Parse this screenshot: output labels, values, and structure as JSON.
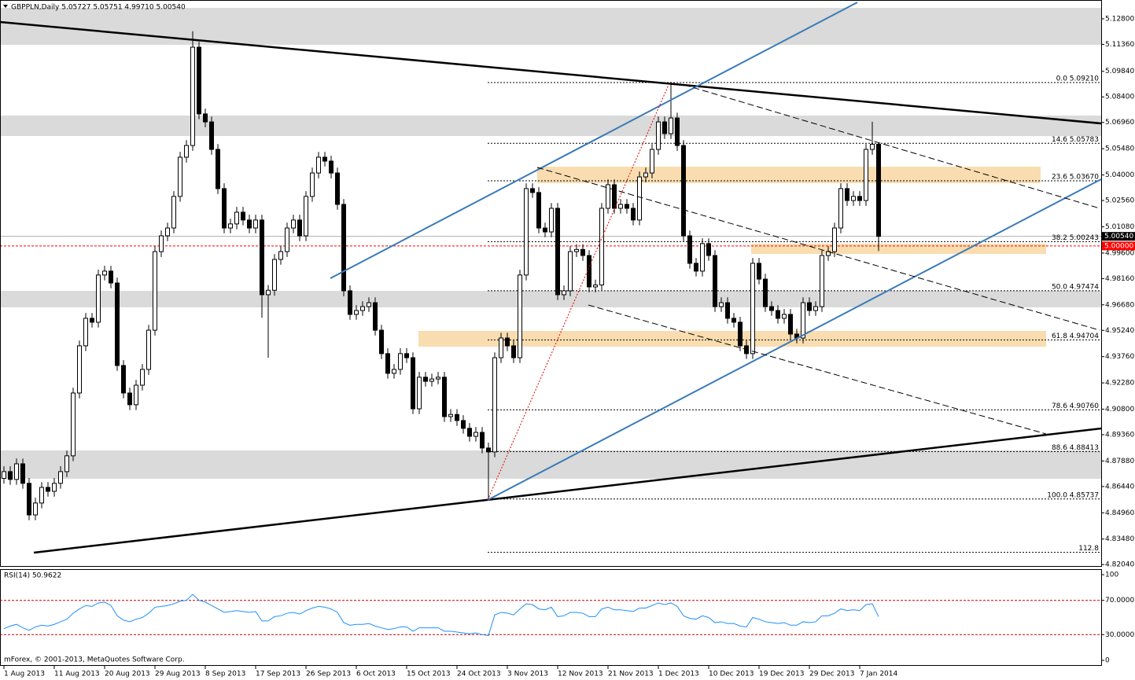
{
  "footer": "mForex, © 2001-2013, MetaQuotes Software Corp.",
  "chart_data": [
    {
      "type": "candlestick",
      "title": "GBPPLN,Daily  5.05727 5.05751 4.99710 5.00540",
      "categories": [
        "1 Aug 2013",
        null,
        null,
        null,
        null,
        null,
        null,
        null,
        "11 Aug 2013",
        null,
        null,
        null,
        null,
        null,
        null,
        null,
        "20 Aug 2013",
        null,
        null,
        null,
        null,
        null,
        null,
        null,
        "29 Aug 2013",
        null,
        null,
        null,
        null,
        null,
        null,
        null,
        "8 Sep 2013",
        null,
        null,
        null,
        null,
        null,
        null,
        null,
        "17 Sep 2013",
        null,
        null,
        null,
        null,
        null,
        null,
        null,
        "26 Sep 2013",
        null,
        null,
        null,
        null,
        null,
        null,
        null,
        "6 Oct 2013",
        null,
        null,
        null,
        null,
        null,
        null,
        null,
        "15 Oct 2013",
        null,
        null,
        null,
        null,
        null,
        null,
        null,
        "24 Oct 2013",
        null,
        null,
        null,
        null,
        null,
        null,
        null,
        "3 Nov 2013",
        null,
        null,
        null,
        null,
        null,
        null,
        null,
        "12 Nov 2013",
        null,
        null,
        null,
        null,
        null,
        null,
        null,
        "21 Nov 2013",
        null,
        null,
        null,
        null,
        null,
        null,
        null,
        "1 Dec 2013",
        null,
        null,
        null,
        null,
        null,
        null,
        null,
        "10 Dec 2013",
        null,
        null,
        null,
        null,
        null,
        null,
        null,
        "19 Dec 2013",
        null,
        null,
        null,
        null,
        null,
        null,
        null,
        "29 Dec 2013",
        null,
        null,
        null,
        null,
        null,
        null,
        null,
        "7 Jan 2014",
        null,
        null,
        null
      ],
      "open": [
        4.869,
        4.8728,
        4.8684,
        4.8772,
        4.8662,
        4.8484,
        4.8551,
        4.8639,
        4.8617,
        4.8662,
        4.8728,
        4.8817,
        4.9171,
        4.9437,
        4.9592,
        4.957,
        4.9836,
        4.9858,
        4.9791,
        4.9326,
        4.9171,
        4.9105,
        4.9215,
        4.9304,
        4.9525,
        4.9968,
        5.0057,
        5.0101,
        5.0279,
        5.05,
        5.0566,
        5.112,
        5.0744,
        5.0699,
        5.0544,
        5.0323,
        5.0101,
        5.0124,
        5.019,
        5.0146,
        5.0101,
        5.0146,
        4.9725,
        4.975,
        4.9924,
        4.9968,
        5.0101,
        5.0146,
        5.0057,
        5.0279,
        5.0411,
        5.05,
        5.0478,
        5.0411,
        5.0234,
        4.9747,
        4.9614,
        4.9636,
        4.9658,
        4.968,
        4.9525,
        4.9393,
        4.9282,
        4.9304,
        4.9393,
        4.937,
        4.9082,
        4.926,
        4.9237,
        4.925,
        4.926,
        4.9038,
        4.905,
        4.9016,
        4.8972,
        4.8927,
        4.8949,
        4.8861,
        4.8839,
        4.937,
        4.9481,
        4.9437,
        4.937,
        4.9836,
        5.0323,
        5.0301,
        5.0101,
        5.0079,
        5.0212,
        4.9725,
        4.9747,
        4.9968,
        4.998,
        4.9946,
        4.9769,
        4.978,
        5.0212,
        5.0345,
        5.0212,
        5.0234,
        5.0212,
        5.0146,
        5.0389,
        5.0411,
        5.0544,
        5.0699,
        5.0633,
        5.0721,
        5.0566,
        5.0057,
        4.9902,
        4.9858,
        5.0013,
        4.9946,
        4.9658,
        4.968,
        4.9592,
        4.957,
        4.9437,
        4.9393,
        4.9902,
        4.9813,
        4.9658,
        4.9636,
        4.9592,
        4.9614,
        4.9503,
        4.9481,
        4.968,
        4.9636,
        4.9658,
        4.9946,
        4.9968,
        5.0101,
        5.0323,
        5.0256,
        5.0279,
        5.0256,
        5.0544,
        5.0573
      ],
      "high": [
        4.8758,
        4.8758,
        4.8802,
        4.8802,
        4.8692,
        4.8581,
        4.8669,
        4.8669,
        4.8692,
        4.8758,
        4.8847,
        4.9201,
        4.9467,
        4.9622,
        4.9622,
        4.9866,
        4.9888,
        4.9888,
        4.9821,
        4.9356,
        4.9201,
        4.9245,
        4.9334,
        4.9555,
        4.9998,
        5.0087,
        5.0131,
        5.0309,
        5.053,
        5.0596,
        5.121,
        5.115,
        5.0774,
        5.0729,
        5.0574,
        5.0353,
        5.0154,
        5.022,
        5.022,
        5.0176,
        5.0176,
        5.0176,
        4.978,
        4.9954,
        4.9998,
        5.0131,
        5.0176,
        5.0176,
        5.0309,
        5.0441,
        5.053,
        5.053,
        5.0508,
        5.0441,
        5.0264,
        4.9777,
        4.9666,
        4.9688,
        4.971,
        4.971,
        4.9555,
        4.9423,
        4.9334,
        4.9423,
        4.9423,
        4.94,
        4.929,
        4.929,
        4.928,
        4.929,
        4.929,
        4.908,
        4.908,
        4.9046,
        4.9002,
        4.8979,
        4.8979,
        4.8891,
        4.94,
        4.9511,
        4.9511,
        4.9467,
        4.9866,
        5.0353,
        5.0353,
        5.0331,
        5.0131,
        5.0242,
        5.0242,
        4.9777,
        4.9998,
        5.001,
        5.001,
        4.9976,
        4.981,
        5.0242,
        5.0375,
        5.0375,
        5.0264,
        5.0264,
        5.0242,
        5.0419,
        5.0441,
        5.0574,
        5.0729,
        5.0729,
        5.0921,
        5.0751,
        5.0596,
        5.0087,
        4.9932,
        5.0043,
        5.0043,
        4.9976,
        4.971,
        4.971,
        4.9622,
        4.96,
        4.9467,
        4.9932,
        4.9932,
        4.9843,
        4.9688,
        4.9666,
        4.9644,
        4.9644,
        4.9533,
        4.971,
        4.971,
        4.9688,
        4.9976,
        4.9998,
        5.0131,
        5.0353,
        5.0353,
        5.0309,
        5.0309,
        5.0574,
        5.07,
        5.0575
      ],
      "low": [
        4.866,
        4.8654,
        4.8654,
        4.8632,
        4.8454,
        4.8454,
        4.8521,
        4.8587,
        4.8587,
        4.8632,
        4.8698,
        4.8787,
        4.9141,
        4.9407,
        4.954,
        4.954,
        4.9806,
        4.9761,
        4.9296,
        4.9141,
        4.9075,
        4.9075,
        4.9185,
        4.9274,
        4.9495,
        4.9938,
        5.0027,
        5.0071,
        5.0249,
        5.047,
        5.0536,
        5.0714,
        5.0669,
        5.0514,
        5.0293,
        5.0071,
        5.0071,
        5.0094,
        5.0116,
        5.0071,
        5.0071,
        4.9595,
        4.937,
        4.972,
        4.9894,
        4.9938,
        5.0071,
        5.0027,
        5.0027,
        5.0249,
        5.0381,
        5.0448,
        5.0381,
        5.0204,
        4.9717,
        4.9584,
        4.9584,
        4.9606,
        4.9628,
        4.9495,
        4.9363,
        4.9252,
        4.9252,
        4.9274,
        4.934,
        4.9052,
        4.9052,
        4.9207,
        4.9207,
        4.922,
        4.9008,
        4.9008,
        4.8986,
        4.8942,
        4.8897,
        4.8897,
        4.8831,
        4.8573,
        4.8809,
        4.934,
        4.9407,
        4.934,
        4.934,
        4.9806,
        5.0271,
        5.0071,
        5.0049,
        5.0049,
        4.9695,
        4.9695,
        4.9717,
        4.9938,
        4.9916,
        4.9739,
        4.9739,
        4.975,
        5.0182,
        5.0182,
        5.0182,
        5.0182,
        5.0116,
        5.0116,
        5.0359,
        5.0381,
        5.0514,
        5.0603,
        5.0603,
        5.0536,
        5.0027,
        4.9872,
        4.9828,
        4.9828,
        4.9916,
        4.9628,
        4.9628,
        4.9562,
        4.954,
        4.9407,
        4.9363,
        4.9363,
        4.9783,
        4.9628,
        4.9606,
        4.9562,
        4.9562,
        4.9473,
        4.9451,
        4.9451,
        4.9606,
        4.9606,
        4.9628,
        4.9916,
        4.9938,
        5.0071,
        5.0226,
        5.0226,
        5.0226,
        5.0226,
        5.0514,
        4.9971
      ],
      "close": [
        4.8728,
        4.8684,
        4.8772,
        4.8662,
        4.8484,
        4.8551,
        4.8639,
        4.8617,
        4.8662,
        4.8728,
        4.8817,
        4.9171,
        4.9437,
        4.9592,
        4.957,
        4.9836,
        4.9858,
        4.9791,
        4.9326,
        4.9171,
        4.9105,
        4.9215,
        4.9304,
        4.9525,
        4.9968,
        5.0057,
        5.0101,
        5.0279,
        5.05,
        5.0566,
        5.112,
        5.0744,
        5.0699,
        5.0544,
        5.0323,
        5.0101,
        5.0124,
        5.019,
        5.0146,
        5.0101,
        5.0146,
        4.9725,
        4.975,
        4.9924,
        4.9968,
        5.0101,
        5.0146,
        5.0057,
        5.0279,
        5.0411,
        5.05,
        5.0478,
        5.0411,
        5.0234,
        4.9747,
        4.9614,
        4.9636,
        4.9658,
        4.968,
        4.9525,
        4.9393,
        4.9282,
        4.9304,
        4.9393,
        4.937,
        4.9082,
        4.926,
        4.9237,
        4.925,
        4.926,
        4.9038,
        4.905,
        4.9016,
        4.8972,
        4.8927,
        4.8949,
        4.8861,
        4.8839,
        4.937,
        4.9481,
        4.9437,
        4.937,
        4.9836,
        5.0323,
        5.0301,
        5.0101,
        5.0079,
        5.0212,
        4.9725,
        4.9747,
        4.9968,
        4.998,
        4.9946,
        4.9769,
        4.978,
        5.0212,
        5.0345,
        5.0212,
        5.0234,
        5.0212,
        5.0146,
        5.0389,
        5.0411,
        5.0544,
        5.0699,
        5.0633,
        5.0721,
        5.0566,
        5.0057,
        4.9902,
        4.9858,
        5.0013,
        4.9946,
        4.9658,
        4.968,
        4.9592,
        4.957,
        4.9437,
        4.9393,
        4.9902,
        4.9813,
        4.9658,
        4.9636,
        4.9592,
        4.9614,
        4.9503,
        4.9481,
        4.968,
        4.9636,
        4.9658,
        4.9946,
        4.9968,
        5.0101,
        5.0323,
        5.0256,
        5.0279,
        5.0256,
        5.0544,
        5.0573,
        5.0054
      ],
      "up_color": "#ffffff",
      "down_color": "#000000",
      "ylim": [
        4.8196,
        5.1386
      ],
      "yticks": [
        {
          "value": 5.128,
          "label": "5.12800"
        },
        {
          "value": 5.1136,
          "label": "5.11360"
        },
        {
          "value": 5.0984,
          "label": "5.09840"
        },
        {
          "value": 5.084,
          "label": "5.08400"
        },
        {
          "value": 5.0696,
          "label": "5.06960"
        },
        {
          "value": 5.0548,
          "label": "5.05480"
        },
        {
          "value": 5.04,
          "label": "5.04000"
        },
        {
          "value": 5.0256,
          "label": "5.02560"
        },
        {
          "value": 5.0108,
          "label": "5.01080"
        },
        {
          "value": 4.996,
          "label": "4.99600"
        },
        {
          "value": 4.9816,
          "label": "4.98160"
        },
        {
          "value": 4.9668,
          "label": "4.96680"
        },
        {
          "value": 4.9524,
          "label": "4.95240"
        },
        {
          "value": 4.9376,
          "label": "4.93760"
        },
        {
          "value": 4.9228,
          "label": "4.92280"
        },
        {
          "value": 4.908,
          "label": "4.90800"
        },
        {
          "value": 4.8936,
          "label": "4.89360"
        },
        {
          "value": 4.8788,
          "label": "4.87880"
        },
        {
          "value": 4.8644,
          "label": "4.86440"
        },
        {
          "value": 4.8496,
          "label": "4.84960"
        },
        {
          "value": 4.8348,
          "label": "4.83480"
        },
        {
          "value": 4.8204,
          "label": "4.82040"
        }
      ],
      "price_lines": [
        {
          "value": 5.0054,
          "label": "5.00540",
          "color": "#000000"
        },
        {
          "value": 5,
          "label": "5.00000",
          "color": "#ff0000"
        }
      ],
      "fib_levels": [
        {
          "level": "0.0",
          "value": 5.0921,
          "label": "5.09210"
        },
        {
          "level": "14.6",
          "value": 5.05783,
          "label": "5.05783"
        },
        {
          "level": "23.6",
          "value": 5.0367,
          "label": "5.03670"
        },
        {
          "level": "38.2",
          "value": 5.00243,
          "label": "5.00243"
        },
        {
          "level": "50.0",
          "value": 4.97474,
          "label": "4.97474"
        },
        {
          "level": "61.8",
          "value": 4.94704,
          "label": "4.94704"
        },
        {
          "level": "78.6",
          "value": 4.9076,
          "label": "4.90760"
        },
        {
          "level": "88.6",
          "value": 4.88413,
          "label": "4.88413"
        },
        {
          "level": "100.0",
          "value": 4.85737,
          "label": "4.85737"
        },
        {
          "level": "112.8",
          "value": 4.8273
        }
      ]
    },
    {
      "type": "line",
      "title": "RSI(14) 50.9622",
      "color": "#1e90ff",
      "values": [
        37,
        40,
        42,
        38,
        35,
        39,
        41,
        40,
        42,
        45,
        48,
        55,
        60,
        64,
        63,
        67,
        68,
        64,
        52,
        47,
        45,
        48,
        50,
        55,
        62,
        63,
        64,
        66,
        69,
        70,
        77,
        70,
        68,
        64,
        60,
        56,
        57,
        58,
        57,
        56,
        57,
        46,
        46,
        51,
        52,
        55,
        56,
        54,
        58,
        61,
        63,
        62,
        60,
        56,
        44,
        41,
        42,
        42,
        43,
        40,
        38,
        36,
        37,
        39,
        39,
        34,
        38,
        38,
        38,
        38,
        34,
        34,
        33,
        32,
        31,
        32,
        30,
        29,
        53,
        56,
        55,
        53,
        60,
        66,
        65,
        60,
        59,
        62,
        51,
        52,
        56,
        56,
        55,
        51,
        51,
        60,
        62,
        59,
        59,
        58,
        57,
        61,
        61,
        64,
        67,
        65,
        67,
        63,
        52,
        49,
        48,
        52,
        50,
        44,
        45,
        43,
        43,
        40,
        39,
        50,
        48,
        45,
        44,
        43,
        44,
        41,
        41,
        45,
        44,
        45,
        52,
        52,
        55,
        60,
        58,
        59,
        58,
        65,
        66,
        50.9622
      ],
      "ylim": [
        0,
        100
      ],
      "yticks": [
        100,
        {
          "value": 70,
          "label": "70.0000"
        },
        {
          "value": 30,
          "label": "30.0000"
        },
        0
      ],
      "levels": [
        70,
        30
      ],
      "level_color": "#c00000"
    }
  ]
}
